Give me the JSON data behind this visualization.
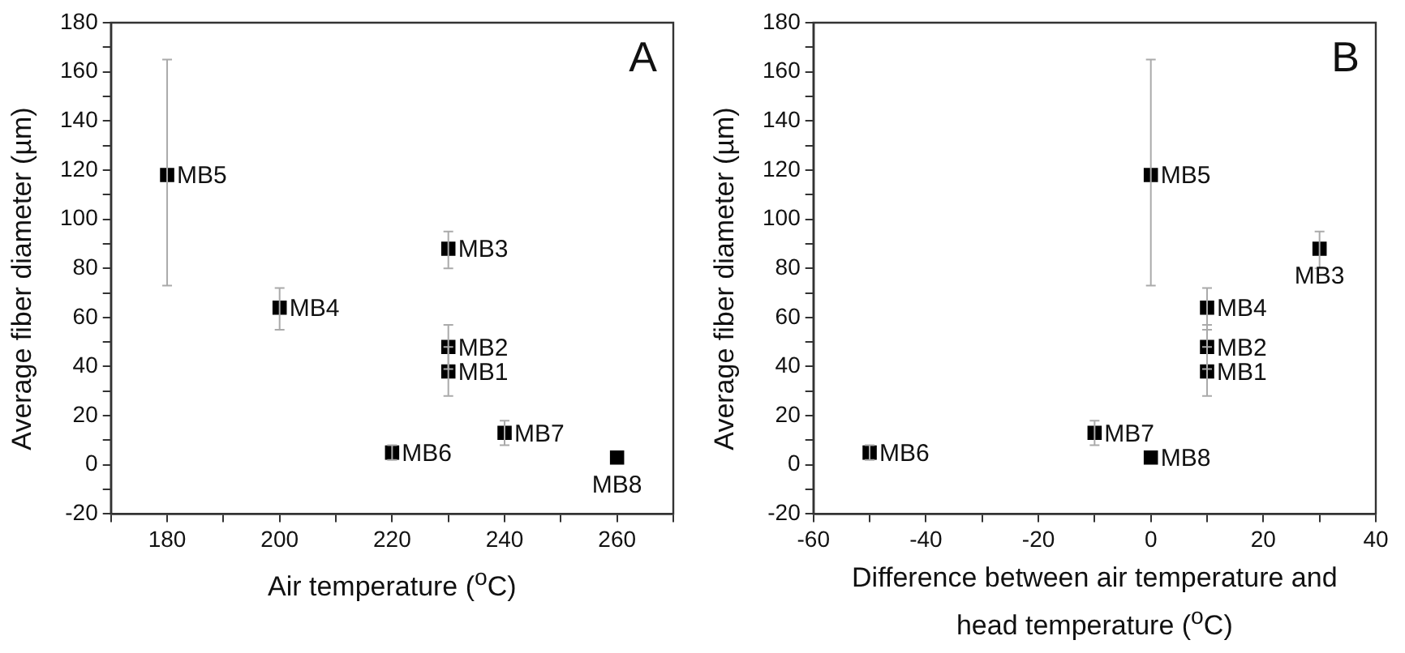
{
  "chart_data": [
    {
      "type": "scatter",
      "ylabel": "Average fiber diameter (µm)",
      "xlabel": "Air temperature ($^{o}$C)",
      "annotations": [
        "A"
      ],
      "marker": "square",
      "grid": false,
      "legend": false,
      "xlim": [
        170,
        270
      ],
      "xticks": [
        {
          "value": 170,
          "label": null
        },
        180,
        {
          "value": 190,
          "label": null
        },
        200,
        {
          "value": 210,
          "label": null
        },
        220,
        {
          "value": 230,
          "label": null
        },
        240,
        {
          "value": 250,
          "label": null
        },
        260,
        {
          "value": 270,
          "label": null
        }
      ],
      "ylim": [
        -20,
        180
      ],
      "yticks": [
        -20,
        {
          "value": -10,
          "label": null
        },
        0,
        {
          "value": 10,
          "label": null
        },
        20,
        {
          "value": 30,
          "label": null
        },
        40,
        {
          "value": 50,
          "label": null
        },
        60,
        {
          "value": 70,
          "label": null
        },
        80,
        {
          "value": 90,
          "label": null
        },
        100,
        {
          "value": 110,
          "label": null
        },
        120,
        {
          "value": 130,
          "label": null
        },
        140,
        {
          "value": 150,
          "label": null
        },
        160,
        {
          "value": 170,
          "label": null
        },
        180
      ],
      "series": [
        {
          "name": "MB1",
          "color": "#000000",
          "x": [
            230
          ],
          "values": [
            38
          ],
          "errors": [
            10
          ]
        },
        {
          "name": "MB2",
          "color": "#000000",
          "x": [
            230
          ],
          "values": [
            48
          ],
          "errors": [
            9
          ]
        },
        {
          "name": "MB3",
          "color": "#000000",
          "x": [
            230
          ],
          "values": [
            88
          ],
          "errors": [
            [
              80,
              95
            ]
          ]
        },
        {
          "name": "MB4",
          "color": "#000000",
          "x": [
            200
          ],
          "values": [
            64
          ],
          "errors": [
            [
              55,
              72
            ]
          ]
        },
        {
          "name": "MB5",
          "color": "#000000",
          "x": [
            180
          ],
          "values": [
            118
          ],
          "errors": [
            [
              73,
              165
            ]
          ]
        },
        {
          "name": "MB6",
          "color": "#000000",
          "x": [
            220
          ],
          "values": [
            5
          ],
          "errors": [
            3
          ]
        },
        {
          "name": "MB7",
          "color": "#000000",
          "x": [
            240
          ],
          "values": [
            13
          ],
          "errors": [
            5
          ]
        },
        {
          "name": "MB8",
          "color": "#000000",
          "x": [
            260
          ],
          "values": [
            3
          ]
        }
      ]
    },
    {
      "type": "scatter",
      "ylabel": "Average fiber diameter (µm)",
      "xlabel": "Difference between air temperature and head temperature ($^{o}$C)",
      "annotations": [
        "B"
      ],
      "marker": "square",
      "grid": false,
      "legend": false,
      "xlim": [
        -60,
        40
      ],
      "xticks": [
        -60,
        {
          "value": -50,
          "label": null
        },
        -40,
        {
          "value": -30,
          "label": null
        },
        -20,
        {
          "value": -10,
          "label": null
        },
        0,
        {
          "value": 10,
          "label": null
        },
        20,
        {
          "value": 30,
          "label": null
        },
        40
      ],
      "ylim": [
        -20,
        180
      ],
      "yticks": [
        -20,
        {
          "value": -10,
          "label": null
        },
        0,
        {
          "value": 10,
          "label": null
        },
        20,
        {
          "value": 30,
          "label": null
        },
        40,
        {
          "value": 50,
          "label": null
        },
        60,
        {
          "value": 70,
          "label": null
        },
        80,
        {
          "value": 90,
          "label": null
        },
        100,
        {
          "value": 110,
          "label": null
        },
        120,
        {
          "value": 130,
          "label": null
        },
        140,
        {
          "value": 150,
          "label": null
        },
        160,
        {
          "value": 170,
          "label": null
        },
        180
      ],
      "series": [
        {
          "name": "MB1",
          "color": "#000000",
          "x": [
            10
          ],
          "values": [
            38
          ],
          "errors": [
            10
          ]
        },
        {
          "name": "MB2",
          "color": "#000000",
          "x": [
            10
          ],
          "values": [
            48
          ],
          "errors": [
            9
          ]
        },
        {
          "name": "MB3",
          "color": "#000000",
          "x": [
            30
          ],
          "values": [
            88
          ],
          "errors": [
            [
              80,
              95
            ]
          ]
        },
        {
          "name": "MB4",
          "color": "#000000",
          "x": [
            10
          ],
          "values": [
            64
          ],
          "errors": [
            [
              55,
              72
            ]
          ]
        },
        {
          "name": "MB5",
          "color": "#000000",
          "x": [
            0
          ],
          "values": [
            118
          ],
          "errors": [
            [
              73,
              165
            ]
          ]
        },
        {
          "name": "MB6",
          "color": "#000000",
          "x": [
            -50
          ],
          "values": [
            5
          ],
          "errors": [
            3
          ]
        },
        {
          "name": "MB7",
          "color": "#000000",
          "x": [
            -10
          ],
          "values": [
            13
          ],
          "errors": [
            5
          ]
        },
        {
          "name": "MB8",
          "color": "#000000",
          "x": [
            0
          ],
          "values": [
            3
          ]
        }
      ]
    }
  ]
}
